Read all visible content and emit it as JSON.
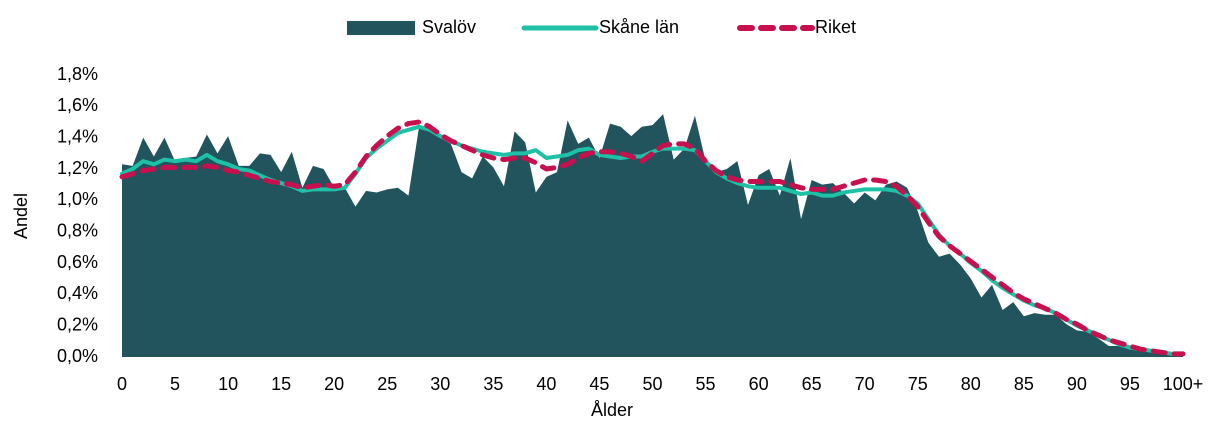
{
  "chart_data": {
    "type": "area-line",
    "x_label": "Ålder",
    "y_label": "Andel",
    "categories": [
      "0",
      null,
      null,
      null,
      null,
      "5",
      null,
      null,
      null,
      null,
      "10",
      null,
      null,
      null,
      null,
      "15",
      null,
      null,
      null,
      null,
      "20",
      null,
      null,
      null,
      null,
      "25",
      null,
      null,
      null,
      null,
      "30",
      null,
      null,
      null,
      null,
      "35",
      null,
      null,
      null,
      null,
      "40",
      null,
      null,
      null,
      null,
      "45",
      null,
      null,
      null,
      null,
      "50",
      null,
      null,
      null,
      null,
      "55",
      null,
      null,
      null,
      null,
      "60",
      null,
      null,
      null,
      null,
      "65",
      null,
      null,
      null,
      null,
      "70",
      null,
      null,
      null,
      null,
      "75",
      null,
      null,
      null,
      null,
      "80",
      null,
      null,
      null,
      null,
      "85",
      null,
      null,
      null,
      null,
      "90",
      null,
      null,
      null,
      null,
      "95",
      null,
      null,
      null,
      null,
      "100+"
    ],
    "series": [
      {
        "name": "Svalöv",
        "kind": "area",
        "color": "#22545e",
        "values": [
          1.23,
          1.22,
          1.4,
          1.28,
          1.4,
          1.25,
          1.27,
          1.28,
          1.42,
          1.3,
          1.41,
          1.22,
          1.22,
          1.3,
          1.29,
          1.18,
          1.31,
          1.08,
          1.22,
          1.2,
          1.08,
          1.08,
          0.96,
          1.06,
          1.05,
          1.07,
          1.08,
          1.03,
          1.47,
          1.45,
          1.4,
          1.36,
          1.18,
          1.14,
          1.28,
          1.21,
          1.09,
          1.44,
          1.37,
          1.05,
          1.15,
          1.18,
          1.51,
          1.36,
          1.4,
          1.27,
          1.49,
          1.47,
          1.41,
          1.47,
          1.48,
          1.55,
          1.26,
          1.33,
          1.54,
          1.25,
          1.18,
          1.2,
          1.25,
          0.97,
          1.16,
          1.2,
          1.03,
          1.27,
          0.88,
          1.13,
          1.1,
          1.11,
          1.05,
          0.98,
          1.05,
          1.0,
          1.1,
          1.12,
          1.08,
          0.93,
          0.73,
          0.64,
          0.66,
          0.59,
          0.5,
          0.38,
          0.46,
          0.3,
          0.35,
          0.26,
          0.28,
          0.27,
          0.27,
          0.21,
          0.17,
          0.16,
          0.12,
          0.07,
          0.07,
          0.06,
          0.04,
          0.03,
          0.02,
          0.01,
          0.02
        ]
      },
      {
        "name": "Skåne län",
        "kind": "line",
        "color": "#1fc1a6",
        "values": [
          1.17,
          1.2,
          1.25,
          1.23,
          1.26,
          1.25,
          1.26,
          1.25,
          1.29,
          1.25,
          1.23,
          1.2,
          1.19,
          1.16,
          1.13,
          1.11,
          1.09,
          1.06,
          1.07,
          1.07,
          1.07,
          1.08,
          1.17,
          1.27,
          1.33,
          1.38,
          1.43,
          1.45,
          1.47,
          1.45,
          1.41,
          1.38,
          1.35,
          1.33,
          1.31,
          1.3,
          1.29,
          1.3,
          1.3,
          1.32,
          1.27,
          1.28,
          1.29,
          1.32,
          1.33,
          1.29,
          1.28,
          1.27,
          1.28,
          1.28,
          1.31,
          1.33,
          1.33,
          1.33,
          1.32,
          1.25,
          1.18,
          1.14,
          1.11,
          1.09,
          1.08,
          1.08,
          1.08,
          1.06,
          1.04,
          1.05,
          1.03,
          1.03,
          1.05,
          1.06,
          1.07,
          1.07,
          1.07,
          1.06,
          1.03,
          0.98,
          0.88,
          0.78,
          0.71,
          0.66,
          0.6,
          0.55,
          0.49,
          0.44,
          0.4,
          0.36,
          0.33,
          0.31,
          0.28,
          0.24,
          0.2,
          0.17,
          0.14,
          0.11,
          0.08,
          0.06,
          0.05,
          0.04,
          0.03,
          0.02,
          0.02
        ]
      },
      {
        "name": "Riket",
        "kind": "dashed",
        "color": "#c8104e",
        "values": [
          1.15,
          1.17,
          1.19,
          1.2,
          1.21,
          1.21,
          1.21,
          1.21,
          1.22,
          1.21,
          1.19,
          1.18,
          1.16,
          1.14,
          1.12,
          1.11,
          1.1,
          1.08,
          1.09,
          1.1,
          1.09,
          1.1,
          1.18,
          1.28,
          1.35,
          1.41,
          1.46,
          1.49,
          1.5,
          1.47,
          1.42,
          1.38,
          1.35,
          1.32,
          1.29,
          1.27,
          1.26,
          1.27,
          1.27,
          1.24,
          1.2,
          1.21,
          1.23,
          1.27,
          1.3,
          1.31,
          1.31,
          1.3,
          1.28,
          1.25,
          1.3,
          1.35,
          1.36,
          1.36,
          1.33,
          1.25,
          1.19,
          1.15,
          1.13,
          1.12,
          1.12,
          1.12,
          1.12,
          1.1,
          1.08,
          1.07,
          1.07,
          1.07,
          1.09,
          1.11,
          1.13,
          1.13,
          1.12,
          1.09,
          1.03,
          0.96,
          0.86,
          0.77,
          0.71,
          0.66,
          0.61,
          0.56,
          0.51,
          0.46,
          0.41,
          0.37,
          0.34,
          0.31,
          0.28,
          0.24,
          0.21,
          0.17,
          0.14,
          0.11,
          0.09,
          0.07,
          0.05,
          0.04,
          0.03,
          0.02,
          0.02
        ]
      }
    ],
    "ylim": [
      0,
      1.8
    ],
    "yticks": [
      {
        "value": 0,
        "label": "0,0%"
      },
      {
        "value": 0.2,
        "label": "0,2%"
      },
      {
        "value": 0.4,
        "label": "0,4%"
      },
      {
        "value": 0.6,
        "label": "0,6%"
      },
      {
        "value": 0.8,
        "label": "0,8%"
      },
      {
        "value": 1.0,
        "label": "1,0%"
      },
      {
        "value": 1.2,
        "label": "1,2%"
      },
      {
        "value": 1.4,
        "label": "1,4%"
      },
      {
        "value": 1.6,
        "label": "1,6%"
      },
      {
        "value": 1.8,
        "label": "1,8%"
      }
    ],
    "legend": "top"
  }
}
